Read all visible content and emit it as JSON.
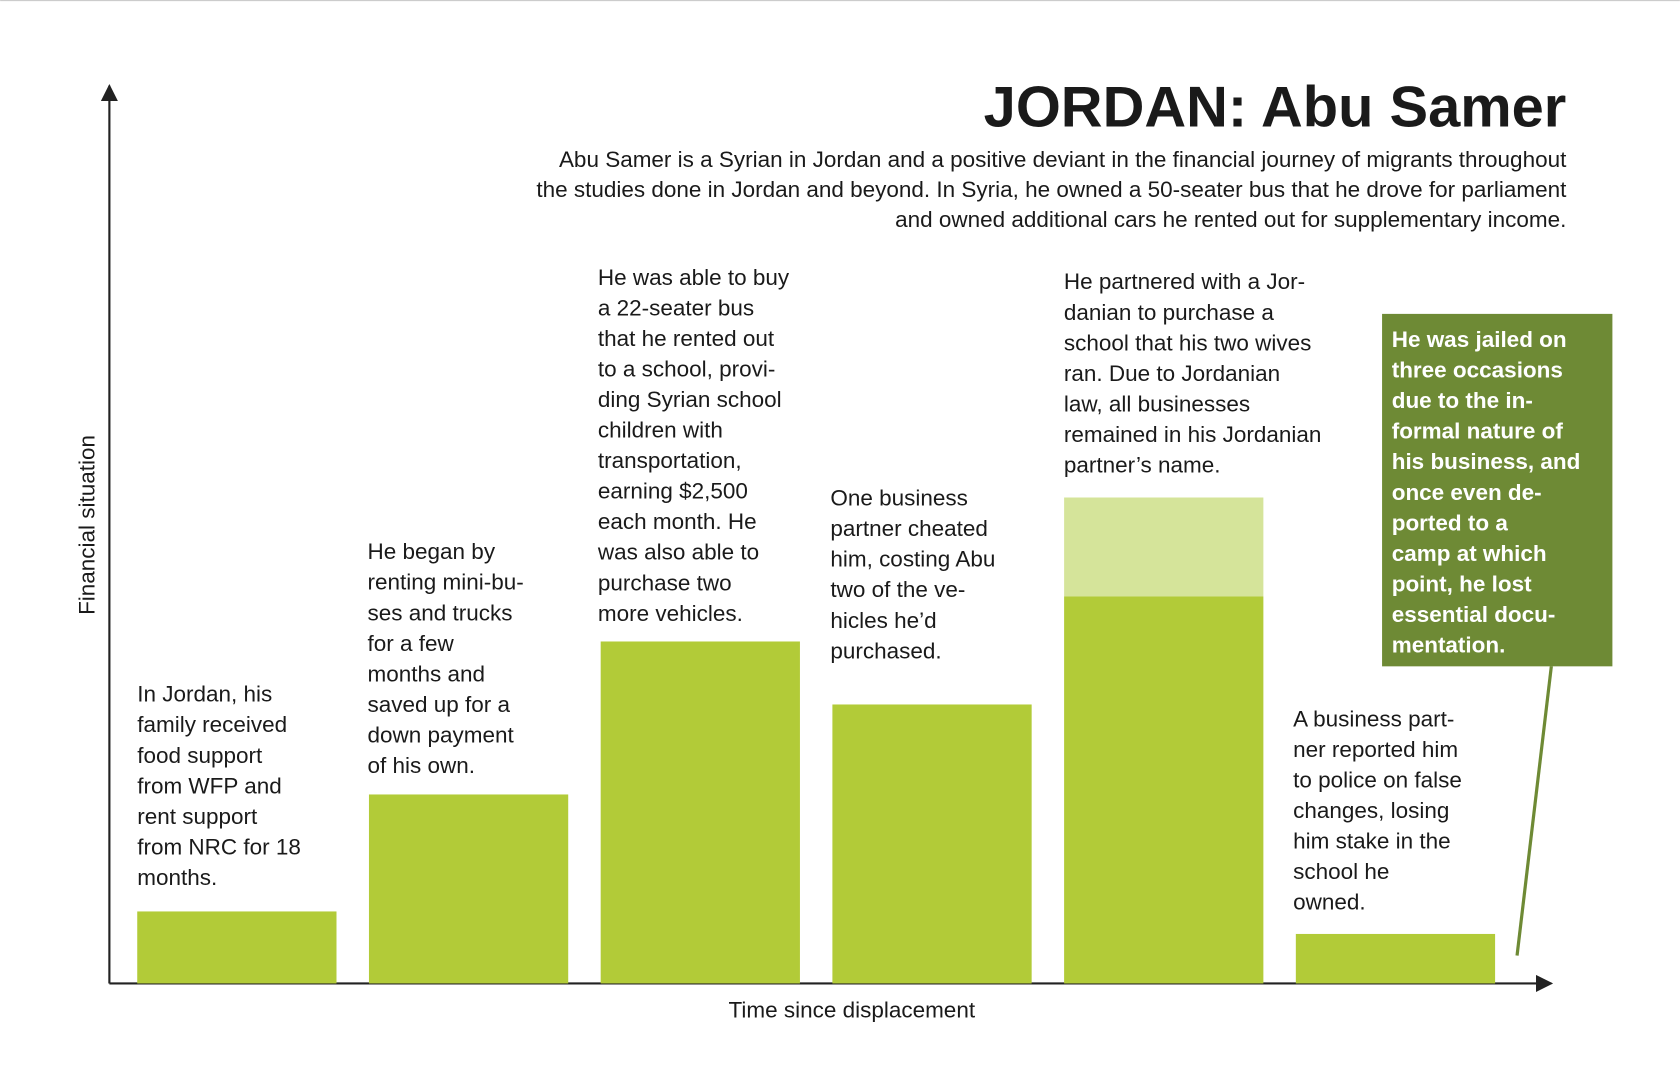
{
  "chart_data": {
    "type": "bar",
    "title": "JORDAN: Abu Samer",
    "subtitle": [
      "Abu Samer is a Syrian in Jordan and a positive deviant in the financial journey of migrants throughout",
      "the studies done in Jordan and beyond. In Syria, he owned a 50-seater bus that he drove for parliament",
      "and owned additional cars he rented out for supplementary income."
    ],
    "y_label": "Financial situation",
    "x_label": "Time since displacement",
    "ylim": [
      0,
      100
    ],
    "series": [
      {
        "color": "#b2cb38",
        "values": [
          8,
          21,
          38,
          31,
          43,
          5.5
        ]
      },
      {
        "color": "#d5e49a",
        "values": [
          null,
          null,
          null,
          null,
          11,
          null
        ]
      }
    ],
    "annotations": [
      [
        "In Jordan, his",
        "family received",
        "food support",
        "from WFP and",
        "rent support",
        "from NRC for 18",
        "months."
      ],
      [
        "He began by",
        "renting mini-bu-",
        "ses and trucks",
        "for a few",
        "months and",
        "saved up for a",
        "down payment",
        "of his own."
      ],
      [
        "He was able to buy",
        "a 22-seater bus",
        "that he rented out",
        "to a school, provi-",
        "ding Syrian school",
        "children with",
        "transportation,",
        "earning $2,500",
        "each month. He",
        "was also able to",
        "purchase two",
        "more vehicles."
      ],
      [
        "One business",
        "partner cheated",
        "him, costing Abu",
        "two of the ve-",
        "hicles he’d",
        "purchased."
      ],
      [
        "He partnered with a Jor-",
        "danian to purchase a",
        "school that his two wives",
        "ran. Due to Jordanian",
        "law, all businesses",
        "remained in his Jordanian",
        "partner’s name."
      ],
      [
        "A business part-",
        "ner reported him",
        "to police on false",
        "changes, losing",
        "him stake in the",
        "school he",
        "owned."
      ]
    ],
    "callout": [
      "He was jailed on",
      "three occasions",
      "due to the in-",
      "formal nature of",
      "his business, and",
      "once even de-",
      "ported to a",
      "camp at which",
      "point, he lost",
      "essential docu-",
      "mentation."
    ]
  }
}
